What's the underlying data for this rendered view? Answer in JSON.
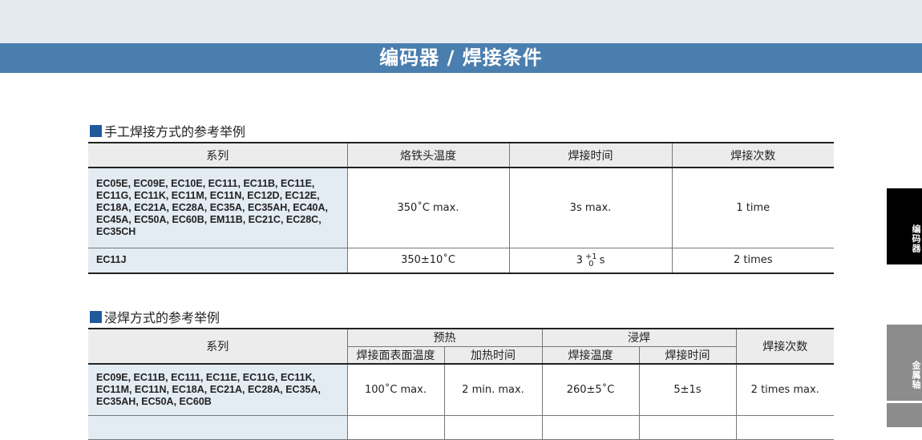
{
  "title": "编码器 / 焊接条件",
  "side_tabs": [
    "编码器",
    "金属轴"
  ],
  "colors": {
    "title_bar": "#4a7eae",
    "series_bg": "#e3ebf3",
    "active_tab": "#000000",
    "inactive_tab": "#8c8c8c"
  },
  "manual": {
    "heading": "手工焊接方式的参考举例",
    "headers": [
      "系列",
      "烙铁头温度",
      "焊接时间",
      "焊接次数"
    ],
    "rows": [
      {
        "series": "EC05E, EC09E, EC10E, EC111, EC11B, EC11E, EC11G, EC11K, EC11M, EC11N, EC12D, EC12E, EC18A, EC21A, EC28A, EC35A, EC35AH, EC40A, EC45A, EC50A, EC60B, EM11B, EC21C, EC28C, EC35CH",
        "temp": "350˚C max.",
        "time": "3s max.",
        "count": "1 time"
      },
      {
        "series": "EC11J",
        "temp": "350±10˚C",
        "time_base": "3",
        "time_plus": "+1",
        "time_minus": "0",
        "time_unit": "s",
        "count": "2 times"
      }
    ]
  },
  "dip": {
    "heading": "浸焊方式的参考举例",
    "headers": {
      "series": "系列",
      "preheat": "预热",
      "dip": "浸焊",
      "count": "焊接次数",
      "surface_temp": "焊接面表面温度",
      "heat_time": "加热时间",
      "solder_temp": "焊接温度",
      "solder_time": "焊接时间"
    },
    "rows": [
      {
        "series": "EC09E, EC11B, EC111, EC11E, EC11G, EC11K, EC11M, EC11N, EC18A, EC21A, EC28A, EC35A, EC35AH, EC50A, EC60B",
        "surface_temp": "100˚C max.",
        "heat_time": "2 min. max.",
        "solder_temp": "260±5˚C",
        "solder_time": "5±1s",
        "count": "2 times max."
      }
    ]
  }
}
